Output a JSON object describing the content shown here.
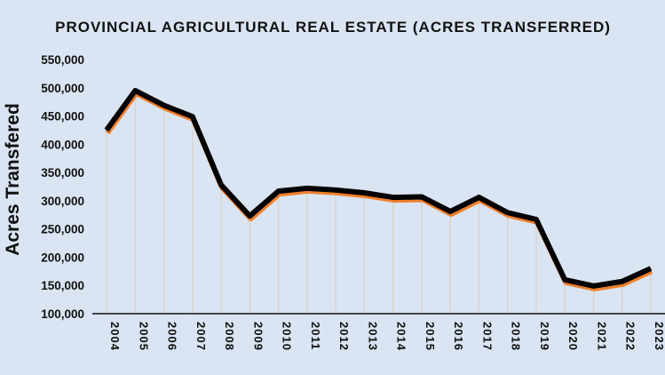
{
  "chart_data": {
    "type": "line",
    "title": "PROVINCIAL AGRICULTURAL REAL ESTATE (ACRES TRANSFERRED)",
    "xlabel": "",
    "ylabel": "Acres Transfered",
    "ylim": [
      100000,
      550000
    ],
    "yticks": [
      "100,000",
      "150,000",
      "200,000",
      "250,000",
      "300,000",
      "350,000",
      "400,000",
      "450,000",
      "500,000",
      "550,000"
    ],
    "categories": [
      "2004",
      "2005",
      "2006",
      "2007",
      "2008",
      "2009",
      "2010",
      "2011",
      "2012",
      "2013",
      "2014",
      "2015",
      "2016",
      "2017",
      "2018",
      "2019",
      "2020",
      "2021",
      "2022",
      "2023"
    ],
    "values": [
      425000,
      495000,
      469000,
      449000,
      328000,
      273000,
      317000,
      322000,
      319000,
      314000,
      306000,
      307000,
      281000,
      306000,
      279000,
      267000,
      160000,
      149000,
      157000,
      180000
    ],
    "grid": false,
    "drop_lines": true,
    "colors": {
      "line": "#000000",
      "shadow": "#f07f2a",
      "drop_line": "#d9d4cf",
      "background": "#dae4f2"
    }
  }
}
